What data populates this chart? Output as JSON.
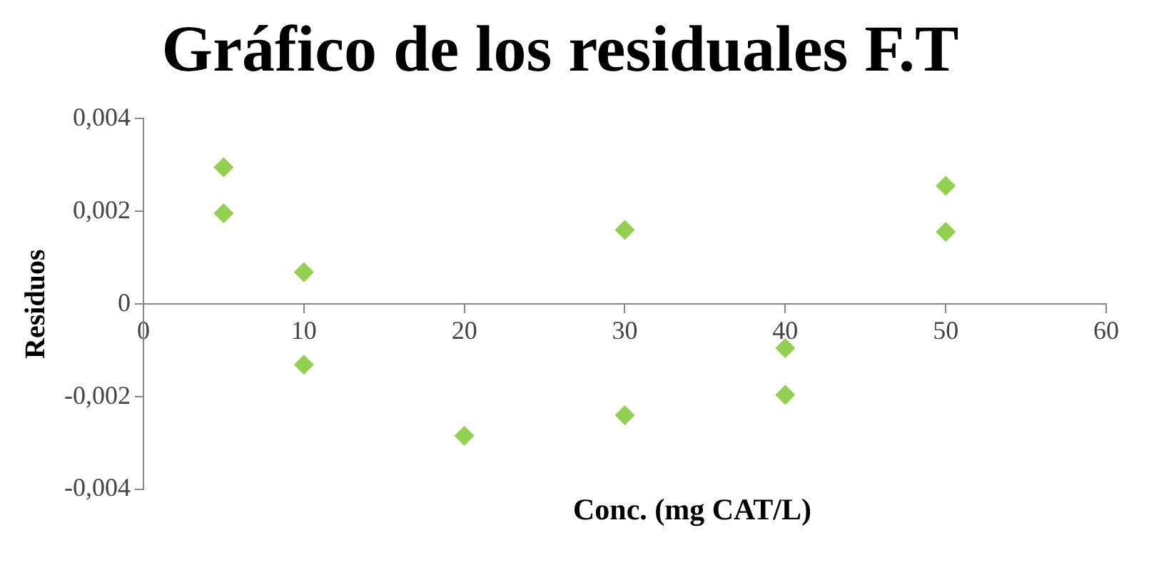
{
  "chart_data": {
    "type": "scatter",
    "title": "Gráfico de los residuales F.T",
    "xlabel": "Conc. (mg CAT/L)",
    "ylabel": "Residuos",
    "x": [
      5,
      5,
      10,
      10,
      20,
      30,
      30,
      40,
      40,
      50,
      50
    ],
    "series": [
      {
        "color": "#92d050",
        "values": [
          0.00295,
          0.00196,
          0.00069,
          -0.00131,
          -0.00284,
          0.0016,
          -0.0024,
          -0.00095,
          -0.00196,
          0.00255,
          0.00156
        ]
      }
    ],
    "xlim": [
      0,
      60
    ],
    "xticks": [
      0,
      10,
      20,
      30,
      40,
      50,
      60
    ],
    "ylim": [
      -0.004,
      0.004
    ],
    "yticks": [
      {
        "value": -0.004,
        "label": "-0,004"
      },
      {
        "value": -0.002,
        "label": "-0,002"
      },
      {
        "value": 0,
        "label": "0"
      },
      {
        "value": 0.002,
        "label": "0,002"
      },
      {
        "value": 0.004,
        "label": "0,004"
      }
    ],
    "grid": false,
    "legend": false,
    "marker": "diamond"
  }
}
